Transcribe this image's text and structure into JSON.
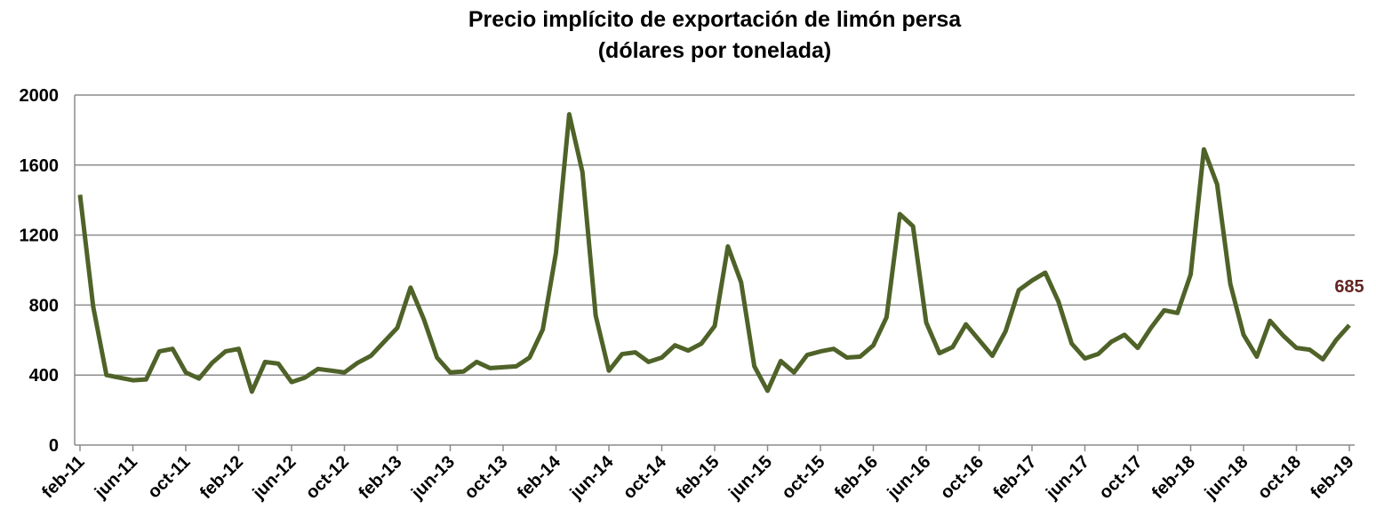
{
  "chart_data": {
    "type": "line",
    "title": "Precio implícito de exportación de limón persa",
    "subtitle": "(dólares por tonelada)",
    "categories": [
      "feb-11",
      null,
      null,
      null,
      "jun-11",
      null,
      null,
      null,
      "oct-11",
      null,
      null,
      null,
      "feb-12",
      null,
      null,
      null,
      "jun-12",
      null,
      null,
      null,
      "oct-12",
      null,
      null,
      null,
      "feb-13",
      null,
      null,
      null,
      "jun-13",
      null,
      null,
      null,
      "oct-13",
      null,
      null,
      null,
      "feb-14",
      null,
      null,
      null,
      "jun-14",
      null,
      null,
      null,
      "oct-14",
      null,
      null,
      null,
      "feb-15",
      null,
      null,
      null,
      "jun-15",
      null,
      null,
      null,
      "oct-15",
      null,
      null,
      null,
      "feb-16",
      null,
      null,
      null,
      "jun-16",
      null,
      null,
      null,
      "oct-16",
      null,
      null,
      null,
      "feb-17",
      null,
      null,
      null,
      "jun-17",
      null,
      null,
      null,
      "oct-17",
      null,
      null,
      null,
      "feb-18",
      null,
      null,
      null,
      "jun-18",
      null,
      null,
      null,
      "oct-18",
      null,
      null,
      null,
      "feb-19"
    ],
    "series": [
      {
        "color": "#4f6228",
        "values": [
          1430,
          790,
          400,
          385,
          370,
          375,
          535,
          550,
          415,
          380,
          470,
          535,
          550,
          305,
          475,
          465,
          360,
          385,
          435,
          425,
          415,
          470,
          510,
          590,
          670,
          900,
          720,
          500,
          415,
          420,
          475,
          440,
          445,
          450,
          500,
          660,
          1100,
          1890,
          1560,
          740,
          425,
          520,
          530,
          475,
          500,
          570,
          540,
          580,
          680,
          1135,
          930,
          450,
          310,
          480,
          415,
          515,
          535,
          550,
          500,
          505,
          570,
          730,
          1320,
          1250,
          700,
          525,
          560,
          690,
          600,
          510,
          650,
          885,
          940,
          985,
          820,
          580,
          495,
          520,
          590,
          630,
          555,
          670,
          770,
          755,
          975,
          1690,
          1490,
          920,
          630,
          505,
          710,
          625,
          555,
          545,
          490,
          600,
          685
        ]
      }
    ],
    "label_color": "#632523",
    "ylim": [
      0,
      2000
    ],
    "yticks": [
      0,
      400,
      800,
      1200,
      1600,
      2000
    ],
    "grid": true
  }
}
